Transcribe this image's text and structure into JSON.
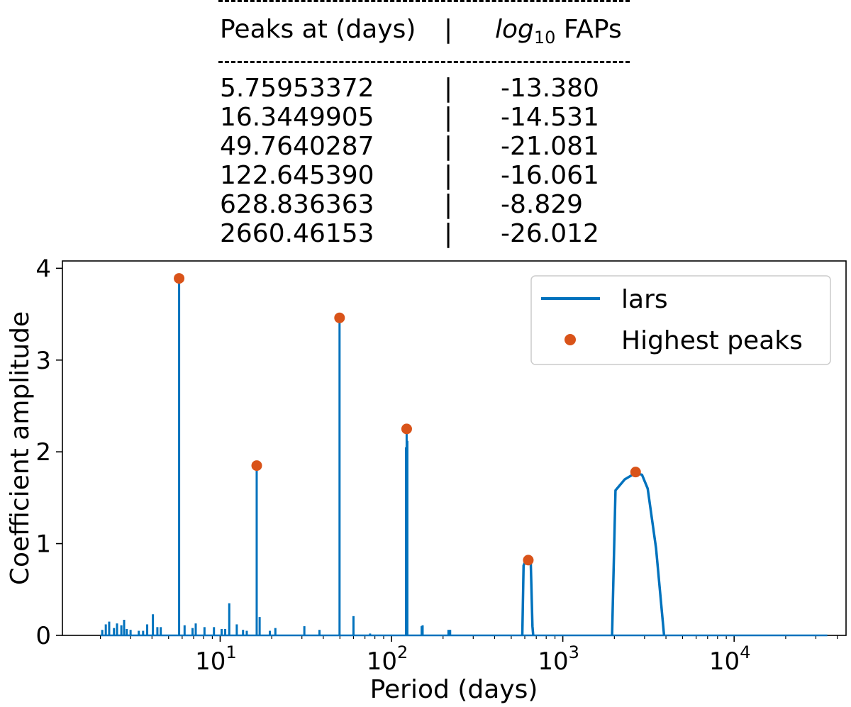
{
  "peaks_table": {
    "col_period": "Peaks at (days)",
    "separator": "|",
    "col_fap_prefix": "log",
    "col_fap_sub": "10",
    "col_fap_suffix": "FAPs",
    "rows": [
      {
        "period": "5.75953372",
        "fap": "-13.380"
      },
      {
        "period": "16.3449905",
        "fap": "-14.531"
      },
      {
        "period": "49.7640287",
        "fap": "-21.081"
      },
      {
        "period": "122.645390",
        "fap": "-16.061"
      },
      {
        "period": "628.836363",
        "fap": "-8.829"
      },
      {
        "period": "2660.46153",
        "fap": "-26.012"
      }
    ]
  },
  "colors": {
    "line": "#0072bd",
    "peaks": "#d95319"
  },
  "chart_data": {
    "type": "line",
    "xscale": "log",
    "xlabel": "Period (days)",
    "ylabel": "Coefficient amplitude",
    "xlim": [
      1.2,
      45000
    ],
    "ylim": [
      0,
      4.08
    ],
    "xticks": [
      {
        "base": "10",
        "exp": "1",
        "value": 10
      },
      {
        "base": "10",
        "exp": "2",
        "value": 100
      },
      {
        "base": "10",
        "exp": "3",
        "value": 1000
      },
      {
        "base": "10",
        "exp": "4",
        "value": 10000
      }
    ],
    "yticks": [
      "0",
      "1",
      "2",
      "3",
      "4"
    ],
    "legend": {
      "position": "top-right",
      "entries": [
        "lars",
        "Highest peaks"
      ]
    },
    "spikes": [
      {
        "x": 2.05,
        "y": 0.06
      },
      {
        "x": 2.15,
        "y": 0.12
      },
      {
        "x": 2.25,
        "y": 0.15
      },
      {
        "x": 2.4,
        "y": 0.08
      },
      {
        "x": 2.5,
        "y": 0.13
      },
      {
        "x": 2.65,
        "y": 0.11
      },
      {
        "x": 2.75,
        "y": 0.17
      },
      {
        "x": 2.85,
        "y": 0.07
      },
      {
        "x": 3.0,
        "y": 0.06
      },
      {
        "x": 3.35,
        "y": 0.05
      },
      {
        "x": 3.55,
        "y": 0.05
      },
      {
        "x": 3.75,
        "y": 0.12
      },
      {
        "x": 4.05,
        "y": 0.23
      },
      {
        "x": 4.3,
        "y": 0.09
      },
      {
        "x": 4.5,
        "y": 0.09
      },
      {
        "x": 5.76,
        "y": 3.88
      },
      {
        "x": 6.2,
        "y": 0.11
      },
      {
        "x": 6.9,
        "y": 0.08
      },
      {
        "x": 7.2,
        "y": 0.13
      },
      {
        "x": 8.1,
        "y": 0.09
      },
      {
        "x": 9.2,
        "y": 0.09
      },
      {
        "x": 10.2,
        "y": 0.07
      },
      {
        "x": 10.7,
        "y": 0.07
      },
      {
        "x": 11.3,
        "y": 0.35
      },
      {
        "x": 12.5,
        "y": 0.12
      },
      {
        "x": 13.6,
        "y": 0.06
      },
      {
        "x": 14.3,
        "y": 0.05
      },
      {
        "x": 16.34,
        "y": 1.84
      },
      {
        "x": 17.0,
        "y": 0.2
      },
      {
        "x": 19.5,
        "y": 0.05
      },
      {
        "x": 21.0,
        "y": 0.08
      },
      {
        "x": 31.0,
        "y": 0.1
      },
      {
        "x": 38.0,
        "y": 0.06
      },
      {
        "x": 49.76,
        "y": 3.45
      },
      {
        "x": 60.0,
        "y": 0.21
      },
      {
        "x": 75.0,
        "y": 0.02
      },
      {
        "x": 121.5,
        "y": 2.05
      },
      {
        "x": 122.6,
        "y": 2.24
      },
      {
        "x": 123.8,
        "y": 2.12
      },
      {
        "x": 150.0,
        "y": 0.1
      },
      {
        "x": 152.0,
        "y": 0.11
      },
      {
        "x": 215.0,
        "y": 0.06
      },
      {
        "x": 220.0,
        "y": 0.06
      }
    ],
    "humps": [
      [
        [
          580,
          0
        ],
        [
          590,
          0.76
        ],
        [
          603,
          0.8
        ],
        [
          628.8,
          0.82
        ],
        [
          650,
          0.8
        ],
        [
          665,
          0.1
        ],
        [
          672,
          0
        ]
      ],
      [
        [
          1940,
          0
        ],
        [
          2030,
          1.58
        ],
        [
          2300,
          1.7
        ],
        [
          2660,
          1.77
        ],
        [
          2900,
          1.75
        ],
        [
          3130,
          1.6
        ],
        [
          3500,
          0.95
        ],
        [
          3900,
          0
        ]
      ]
    ],
    "baseline_end": 35000,
    "highest_peaks": [
      {
        "x": 5.7595,
        "y": 3.89
      },
      {
        "x": 16.345,
        "y": 1.85
      },
      {
        "x": 49.764,
        "y": 3.46
      },
      {
        "x": 122.645,
        "y": 2.25
      },
      {
        "x": 628.836,
        "y": 0.82
      },
      {
        "x": 2660.46,
        "y": 1.78
      }
    ]
  }
}
